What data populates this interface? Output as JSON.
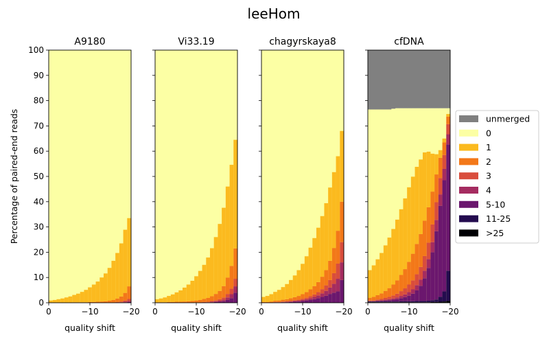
{
  "chart_data": {
    "type": "bar",
    "title": "leeHom",
    "ylabel": "Percentage of paired-end reads",
    "xlabel": "quality shift",
    "x_ticks": [
      0,
      -10,
      -20
    ],
    "x_tick_labels": [
      "0",
      "−10",
      "−20"
    ],
    "y_ticks": [
      0,
      10,
      20,
      30,
      40,
      50,
      60,
      70,
      80,
      90,
      100
    ],
    "ylim": [
      0,
      100
    ],
    "xlim": [
      0,
      -20
    ],
    "grid": "horizontal",
    "legend_placement": "center-right",
    "categories_order": [
      "unmerged",
      "0",
      "1",
      "2",
      "3",
      "4",
      "5-10",
      "11-25",
      ">25"
    ],
    "colors": {
      "unmerged": "#808080",
      "0": "#fcffa4",
      "1": "#fbba1f",
      "2": "#f37819",
      "3": "#d94d3c",
      "4": "#a52c60",
      "5-10": "#6b176e",
      "11-25": "#240c4f",
      ">25": "#000004"
    },
    "shifts": [
      0,
      -1,
      -2,
      -3,
      -4,
      -5,
      -6,
      -7,
      -8,
      -9,
      -10,
      -11,
      -12,
      -13,
      -14,
      -15,
      -16,
      -17,
      -18,
      -19,
      -20
    ],
    "panels": [
      {
        "title": "A9180",
        "series": [
          {
            "name": "1",
            "values": [
              0.8,
              1.0,
              1.3,
              1.6,
              2.0,
              2.4,
              2.9,
              3.4,
              4.1,
              4.9,
              5.8,
              6.9,
              8.0,
              9.5,
              11.0,
              13.0,
              15.5,
              18.0,
              21.0,
              25.0,
              27.0
            ]
          },
          {
            "name": "2",
            "values": [
              0.1,
              0.1,
              0.1,
              0.1,
              0.1,
              0.1,
              0.2,
              0.2,
              0.2,
              0.2,
              0.3,
              0.3,
              0.4,
              0.5,
              0.6,
              0.8,
              1.0,
              1.4,
              2.0,
              3.0,
              5.0
            ]
          },
          {
            "name": "3",
            "values": [
              0,
              0,
              0,
              0,
              0,
              0,
              0,
              0,
              0,
              0,
              0,
              0,
              0,
              0,
              0,
              0,
              0.1,
              0.2,
              0.3,
              0.5,
              0.8
            ]
          },
          {
            "name": "4",
            "values": [
              0,
              0,
              0,
              0,
              0,
              0,
              0,
              0,
              0,
              0,
              0,
              0,
              0,
              0,
              0,
              0,
              0,
              0.1,
              0.1,
              0.2,
              0.4
            ]
          },
          {
            "name": "5-10",
            "values": [
              0,
              0,
              0,
              0,
              0,
              0,
              0,
              0,
              0,
              0,
              0,
              0,
              0,
              0,
              0,
              0,
              0,
              0,
              0.1,
              0.2,
              0.3
            ]
          }
        ]
      },
      {
        "title": "Vi33.19",
        "series": [
          {
            "name": "1",
            "values": [
              1.2,
              1.5,
              1.9,
              2.4,
              3.0,
              3.7,
              4.5,
              5.5,
              6.6,
              8.0,
              9.6,
              11.5,
              13.5,
              16.0,
              19.0,
              22.5,
              26.5,
              31.0,
              36.0,
              40.0,
              43.0
            ]
          },
          {
            "name": "2",
            "values": [
              0.2,
              0.2,
              0.2,
              0.3,
              0.3,
              0.4,
              0.4,
              0.5,
              0.6,
              0.7,
              0.8,
              1.0,
              1.2,
              1.5,
              1.9,
              2.5,
              3.3,
              4.5,
              6.5,
              9.0,
              12.0
            ]
          },
          {
            "name": "3",
            "values": [
              0,
              0,
              0,
              0,
              0,
              0,
              0,
              0,
              0,
              0,
              0.1,
              0.1,
              0.2,
              0.2,
              0.3,
              0.4,
              0.6,
              0.9,
              1.4,
              2.2,
              3.0
            ]
          },
          {
            "name": "4",
            "values": [
              0,
              0,
              0,
              0,
              0,
              0,
              0,
              0,
              0,
              0,
              0,
              0,
              0.1,
              0.1,
              0.2,
              0.3,
              0.4,
              0.6,
              1.0,
              1.6,
              2.5
            ]
          },
          {
            "name": "5-10",
            "values": [
              0,
              0,
              0,
              0,
              0,
              0,
              0,
              0,
              0,
              0,
              0,
              0,
              0,
              0.1,
              0.2,
              0.3,
              0.4,
              0.6,
              1.1,
              1.8,
              4.0
            ]
          }
        ]
      },
      {
        "title": "chagyrskaya8",
        "series": [
          {
            "name": "1",
            "values": [
              2.0,
              2.4,
              2.9,
              3.5,
              4.2,
              5.0,
              6.0,
              7.2,
              8.6,
              10.2,
              12.0,
              14.2,
              16.5,
              19.0,
              21.5,
              24.0,
              26.5,
              29.0,
              30.0,
              29.5,
              28.0
            ]
          },
          {
            "name": "2",
            "values": [
              0.3,
              0.3,
              0.4,
              0.5,
              0.6,
              0.7,
              0.8,
              1.0,
              1.2,
              1.5,
              1.8,
              2.2,
              2.7,
              3.3,
              4.0,
              4.9,
              6.0,
              7.6,
              10.0,
              13.0,
              16.0
            ]
          },
          {
            "name": "3",
            "values": [
              0,
              0,
              0.1,
              0.1,
              0.1,
              0.2,
              0.2,
              0.3,
              0.3,
              0.4,
              0.5,
              0.6,
              0.8,
              1.0,
              1.3,
              1.7,
              2.2,
              3.0,
              4.2,
              6.0,
              8.0
            ]
          },
          {
            "name": "4",
            "values": [
              0,
              0,
              0,
              0.1,
              0.1,
              0.1,
              0.2,
              0.2,
              0.3,
              0.3,
              0.4,
              0.5,
              0.7,
              0.9,
              1.1,
              1.4,
              1.9,
              2.5,
              3.5,
              5.0,
              7.0
            ]
          },
          {
            "name": "5-10",
            "values": [
              0,
              0,
              0,
              0.1,
              0.1,
              0.2,
              0.2,
              0.3,
              0.4,
              0.5,
              0.7,
              0.9,
              1.1,
              1.4,
              1.8,
              2.3,
              2.8,
              3.5,
              4.0,
              4.5,
              9.0
            ]
          }
        ]
      },
      {
        "title": "cfDNA",
        "series": [
          {
            "name": "unmerged",
            "values": [
              23.5,
              23.5,
              23.5,
              23.5,
              23.5,
              23.5,
              23.2,
              23.0,
              23.0,
              23.0,
              23.0,
              23.0,
              23.0,
              23.0,
              23.0,
              23.0,
              23.0,
              23.0,
              23.0,
              23.0,
              23.0
            ]
          },
          {
            "name": "1",
            "values": [
              11.0,
              12.5,
              14.2,
              16.0,
              18.0,
              20.0,
              22.0,
              24.0,
              26.0,
              28.0,
              29.5,
              30.5,
              30.5,
              29.5,
              27.0,
              22.0,
              15.0,
              8.0,
              3.0,
              1.5,
              1.0
            ]
          },
          {
            "name": "2",
            "values": [
              1.0,
              1.3,
              1.7,
              2.2,
              2.8,
              3.5,
              4.3,
              5.3,
              6.4,
              7.6,
              9.0,
              10.5,
              12.0,
              13.0,
              14.0,
              14.0,
              13.0,
              11.0,
              8.0,
              5.0,
              3.0
            ]
          },
          {
            "name": "3",
            "values": [
              0.2,
              0.3,
              0.4,
              0.5,
              0.7,
              0.9,
              1.2,
              1.5,
              1.9,
              2.4,
              3.0,
              3.6,
              4.3,
              5.0,
              5.8,
              6.5,
              7.0,
              7.0,
              6.5,
              5.5,
              4.0
            ]
          },
          {
            "name": "4",
            "values": [
              0.1,
              0.1,
              0.2,
              0.2,
              0.3,
              0.4,
              0.5,
              0.7,
              0.9,
              1.1,
              1.4,
              1.7,
              2.1,
              2.5,
              3.0,
              3.5,
              4.0,
              4.5,
              4.5,
              4.5,
              4.0
            ]
          },
          {
            "name": "5-10",
            "values": [
              0.1,
              0.1,
              0.2,
              0.3,
              0.4,
              0.5,
              0.7,
              0.9,
              1.2,
              1.6,
              2.2,
              3.0,
              4.2,
              6.0,
              9.0,
              13.0,
              19.0,
              27.0,
              36.0,
              44.0,
              50.0
            ]
          },
          {
            "name": "11-25",
            "values": [
              0.3,
              0.3,
              0.3,
              0.3,
              0.3,
              0.3,
              0.3,
              0.3,
              0.4,
              0.4,
              0.4,
              0.4,
              0.5,
              0.5,
              0.5,
              0.6,
              0.7,
              1.0,
              2.0,
              4.0,
              12.0
            ]
          },
          {
            "name": ">25",
            "values": [
              0.2,
              0.2,
              0.2,
              0.2,
              0.2,
              0.2,
              0.2,
              0.2,
              0.2,
              0.2,
              0.2,
              0.2,
              0.2,
              0.2,
              0.2,
              0.2,
              0.3,
              0.3,
              0.4,
              0.5,
              0.7
            ]
          }
        ]
      }
    ]
  }
}
